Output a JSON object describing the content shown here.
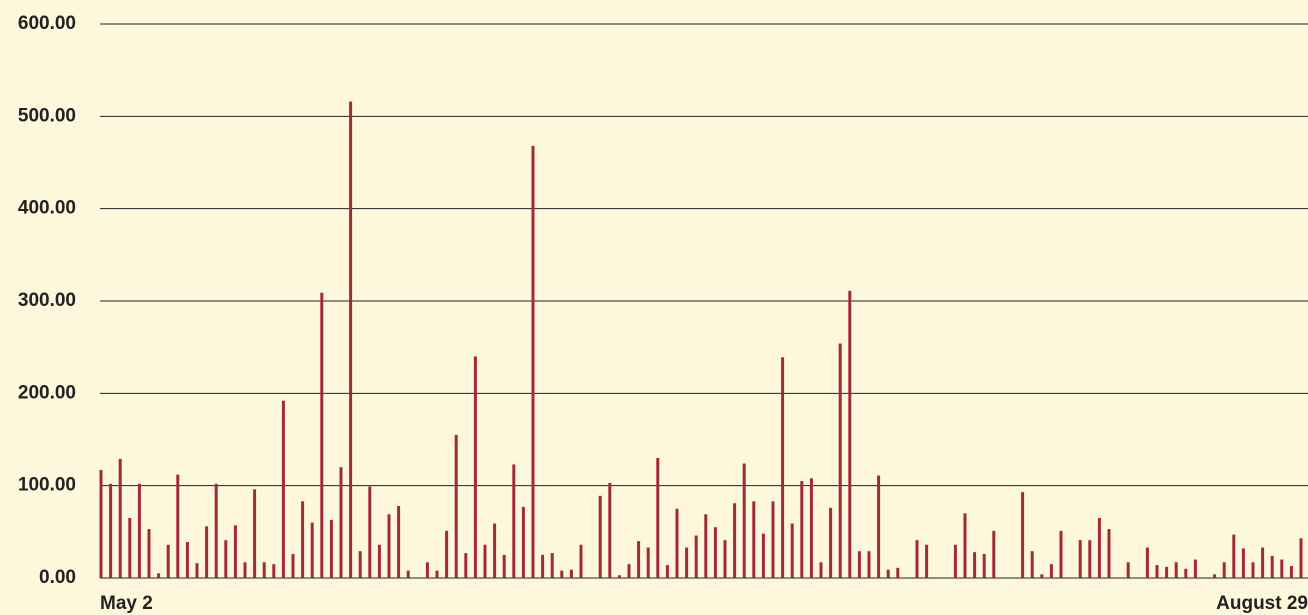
{
  "chart_data": {
    "type": "bar",
    "color": "#a3283a",
    "grid": true,
    "ylim": [
      0,
      600
    ],
    "yticks": [
      {
        "value": 0,
        "label": "0.00"
      },
      {
        "value": 100,
        "label": "100.00"
      },
      {
        "value": 200,
        "label": "200.00"
      },
      {
        "value": 300,
        "label": "300.00"
      },
      {
        "value": 400,
        "label": "400.00"
      },
      {
        "value": 500,
        "label": "500.00"
      },
      {
        "value": 600,
        "label": "600.00"
      }
    ],
    "categories": [
      "May 2",
      null,
      null,
      null,
      null,
      null,
      null,
      null,
      null,
      null,
      null,
      null,
      null,
      null,
      null,
      null,
      null,
      null,
      null,
      null,
      null,
      null,
      null,
      null,
      null,
      null,
      null,
      null,
      null,
      null,
      null,
      null,
      null,
      null,
      null,
      null,
      null,
      null,
      null,
      null,
      null,
      null,
      null,
      null,
      null,
      null,
      null,
      null,
      null,
      null,
      null,
      null,
      null,
      null,
      null,
      null,
      null,
      null,
      null,
      null,
      null,
      null,
      null,
      null,
      null,
      null,
      null,
      null,
      null,
      null,
      null,
      null,
      null,
      null,
      null,
      null,
      null,
      null,
      null,
      null,
      null,
      null,
      null,
      null,
      null,
      null,
      null,
      null,
      null,
      null,
      null,
      null,
      null,
      null,
      null,
      null,
      null,
      null,
      null,
      null,
      null,
      null,
      null,
      null,
      null,
      null,
      null,
      null,
      null,
      null,
      null,
      null,
      null,
      null,
      null,
      null,
      null,
      null,
      null,
      null,
      null,
      null,
      null,
      null,
      null,
      "August 29"
    ],
    "values": [
      117,
      102,
      129,
      65,
      102,
      53,
      5,
      36,
      112,
      39,
      16,
      56,
      102,
      41,
      57,
      17,
      96,
      17,
      15,
      192,
      26,
      83,
      60,
      309,
      63,
      120,
      516,
      29,
      99,
      36,
      69,
      78,
      8,
      0,
      17,
      8,
      51,
      155,
      27,
      240,
      36,
      59,
      25,
      123,
      77,
      468,
      25,
      27,
      8,
      9,
      36,
      0,
      89,
      103,
      3,
      15,
      40,
      33,
      130,
      14,
      75,
      33,
      46,
      69,
      55,
      41,
      81,
      124,
      83,
      48,
      83,
      239,
      59,
      105,
      108,
      17,
      76,
      254,
      311,
      29,
      29,
      111,
      9,
      11,
      0,
      41,
      36,
      0,
      0,
      36,
      70,
      28,
      26,
      51,
      0,
      0,
      93,
      29,
      4,
      15,
      51,
      0,
      41,
      41,
      65,
      53,
      0,
      17,
      0,
      33,
      14,
      12,
      17,
      10,
      20,
      0,
      4,
      17,
      47,
      32,
      17,
      33,
      24,
      20,
      13,
      43
    ]
  }
}
